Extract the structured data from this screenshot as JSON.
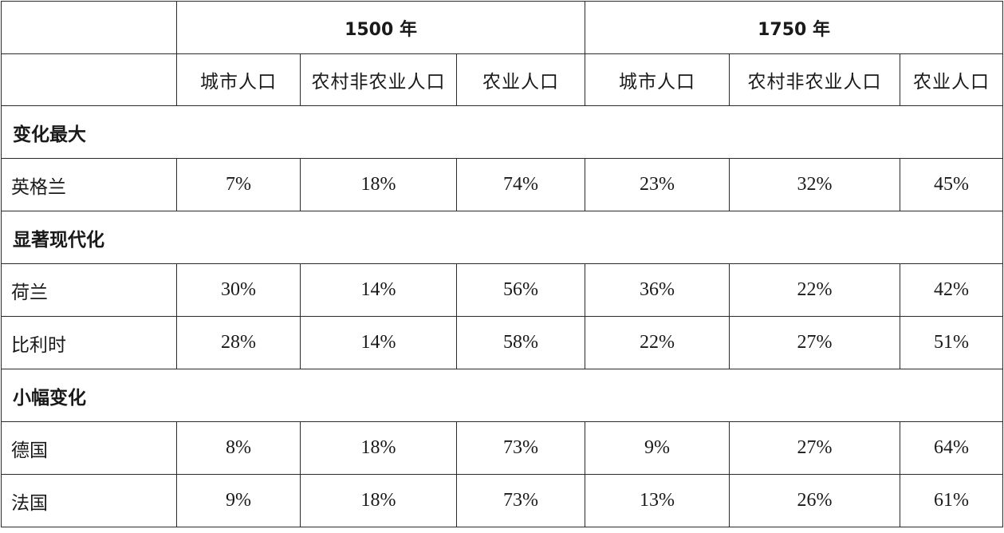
{
  "table": {
    "years": [
      {
        "label": "1500 年"
      },
      {
        "label": "1750 年"
      }
    ],
    "subheaders": [
      "城市人口",
      "农村非农业人口",
      "农业人口",
      "城市人口",
      "农村非农业人口",
      "农业人口"
    ],
    "groups": [
      {
        "label": "变化最大",
        "rows": [
          {
            "country": "英格兰",
            "values": [
              "7%",
              "18%",
              "74%",
              "23%",
              "32%",
              "45%"
            ]
          }
        ]
      },
      {
        "label": "显著现代化",
        "rows": [
          {
            "country": "荷兰",
            "values": [
              "30%",
              "14%",
              "56%",
              "36%",
              "22%",
              "42%"
            ]
          },
          {
            "country": "比利时",
            "values": [
              "28%",
              "14%",
              "58%",
              "22%",
              "27%",
              "51%"
            ]
          }
        ]
      },
      {
        "label": "小幅变化",
        "rows": [
          {
            "country": "德国",
            "values": [
              "8%",
              "18%",
              "73%",
              "9%",
              "27%",
              "64%"
            ]
          },
          {
            "country": "法国",
            "values": [
              "9%",
              "18%",
              "73%",
              "13%",
              "26%",
              "61%"
            ]
          }
        ]
      }
    ]
  }
}
